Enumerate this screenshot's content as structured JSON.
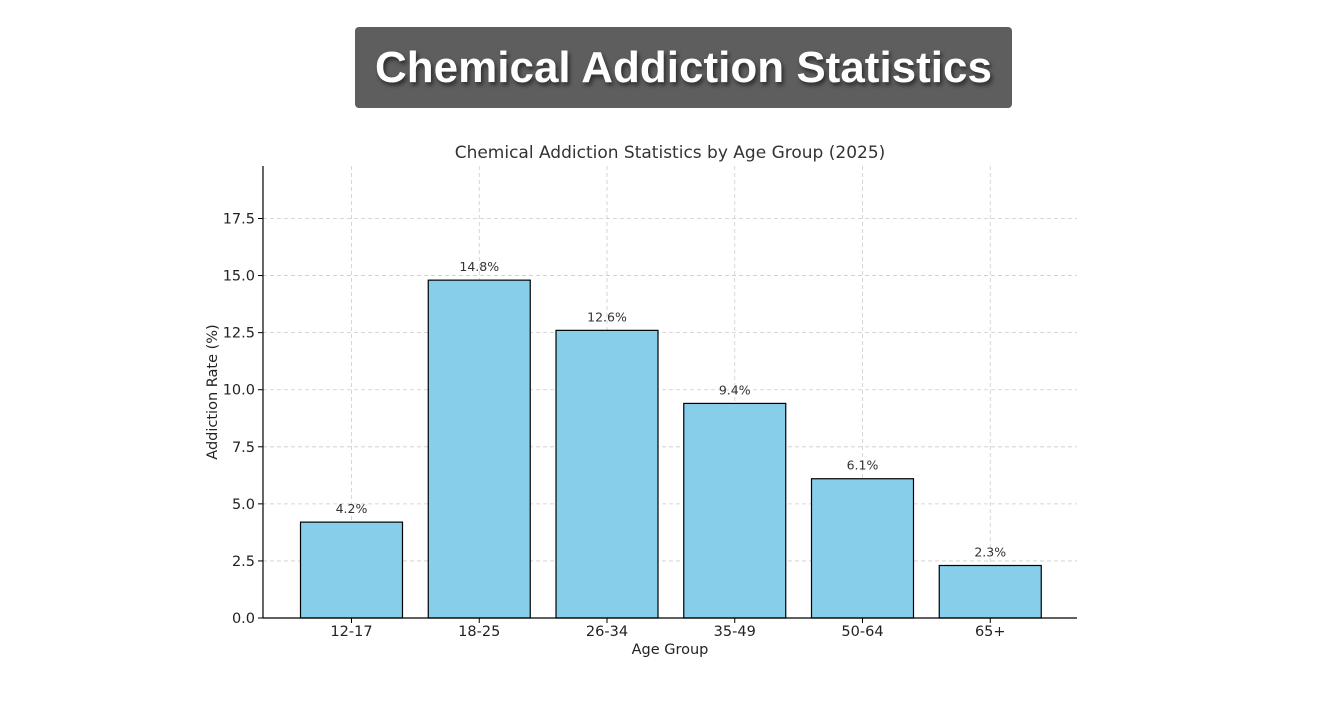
{
  "banner": {
    "title": "Chemical Addiction Statistics"
  },
  "colors": {
    "banner_bg": "#5f5e5e",
    "bar_fill": "#87ceeb",
    "bar_stroke": "#000000",
    "grid": "#cccccc",
    "text": "#333333"
  },
  "chart_data": {
    "type": "bar",
    "title": "Chemical Addiction Statistics by Age Group (2025)",
    "xlabel": "Age Group",
    "ylabel": "Addiction Rate (%)",
    "categories": [
      "12-17",
      "18-25",
      "26-34",
      "35-49",
      "50-64",
      "65+"
    ],
    "values": [
      4.2,
      14.8,
      12.6,
      9.4,
      6.1,
      2.3
    ],
    "value_labels": [
      "4.2%",
      "14.8%",
      "12.6%",
      "9.4%",
      "6.1%",
      "2.3%"
    ],
    "ylim": [
      0,
      19.8
    ],
    "yticks": [
      0.0,
      2.5,
      5.0,
      7.5,
      10.0,
      12.5,
      15.0,
      17.5
    ],
    "ytick_labels": [
      "0.0",
      "2.5",
      "5.0",
      "7.5",
      "10.0",
      "12.5",
      "15.0",
      "17.5"
    ],
    "grid": true,
    "legend": "none"
  }
}
